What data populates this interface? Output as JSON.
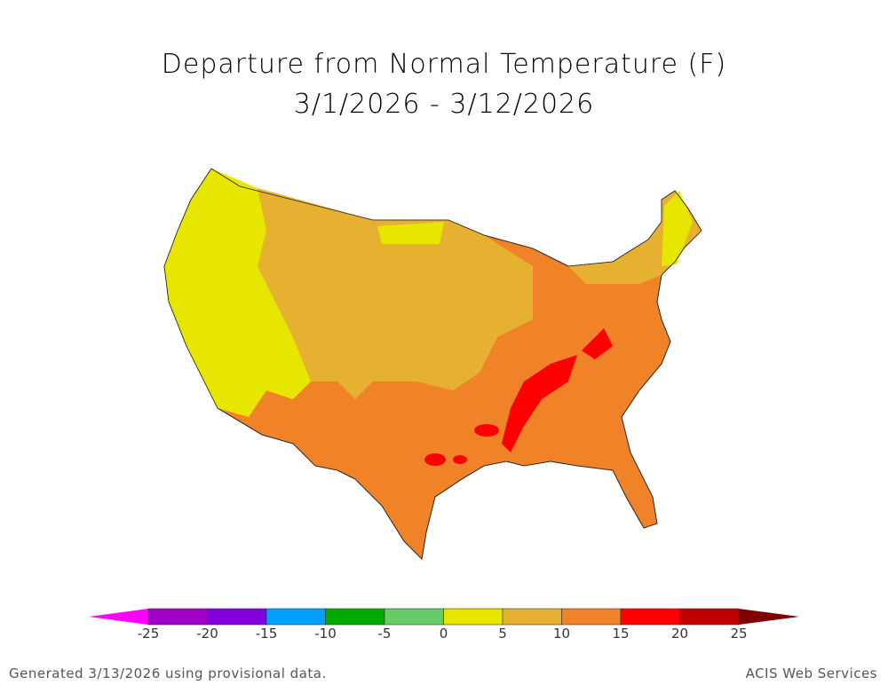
{
  "title": "Departure from Normal Temperature (F)",
  "subtitle": "3/1/2026 - 3/12/2026",
  "footer_left": "Generated 3/13/2026 using provisional data.",
  "footer_right": "ACIS Web Services",
  "legend": {
    "ticks": [
      "-25",
      "-20",
      "-15",
      "-10",
      "-5",
      "0",
      "5",
      "10",
      "15",
      "20",
      "25"
    ],
    "colors": [
      "#ff00ff",
      "#a000c8",
      "#8200dc",
      "#00a0ff",
      "#00aa00",
      "#66cc66",
      "#e6e600",
      "#e6b030",
      "#f08228",
      "#ff0000",
      "#c00000",
      "#800000"
    ]
  }
}
